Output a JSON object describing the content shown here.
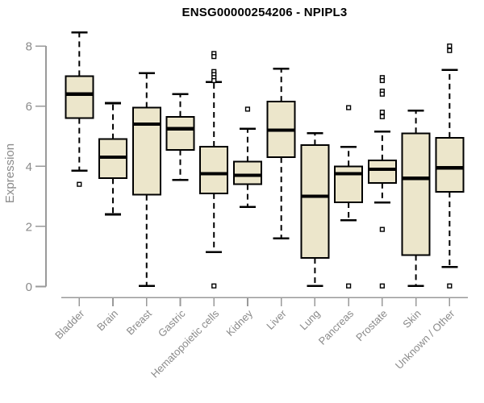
{
  "chart": {
    "title": "ENSG00000254206 - NPIPL3"
  },
  "chart_data": {
    "type": "boxplot",
    "title": "ENSG00000254206 - NPIPL3",
    "xlabel": "",
    "ylabel": "Expression",
    "ylim": [
      0,
      8.5
    ],
    "yticks": [
      0,
      2,
      4,
      6,
      8
    ],
    "grid": false,
    "legend": "none",
    "orientation": "vertical",
    "colors": {
      "box_fill": "#ECE6CB",
      "box_stroke": "#000000",
      "median": "#000000",
      "whisker": "#000000",
      "outlier_fill": "#ffffff",
      "axis": "#9a9a9a",
      "tick_label": "#8a8a8a",
      "title": "#000000",
      "background": "#ffffff"
    },
    "categories": [
      "Bladder",
      "Brain",
      "Breast",
      "Gastric",
      "Hematopoietic cells",
      "Kidney",
      "Liver",
      "Lung",
      "Pancreas",
      "Prostate",
      "Skin",
      "Unknown / Other"
    ],
    "series": [
      {
        "category": "Bladder",
        "whisker_low": 3.85,
        "q1": 5.6,
        "median": 6.4,
        "q3": 7.0,
        "whisker_high": 8.45,
        "outliers": [
          3.4
        ]
      },
      {
        "category": "Brain",
        "whisker_low": 2.4,
        "q1": 3.6,
        "median": 4.3,
        "q3": 4.9,
        "whisker_high": 6.1,
        "outliers": []
      },
      {
        "category": "Breast",
        "whisker_low": 0.02,
        "q1": 3.05,
        "median": 5.4,
        "q3": 5.95,
        "whisker_high": 7.1,
        "outliers": []
      },
      {
        "category": "Gastric",
        "whisker_low": 3.55,
        "q1": 4.55,
        "median": 5.25,
        "q3": 5.65,
        "whisker_high": 6.4,
        "outliers": []
      },
      {
        "category": "Hematopoietic cells",
        "whisker_low": 1.15,
        "q1": 3.1,
        "median": 3.75,
        "q3": 4.65,
        "whisker_high": 6.8,
        "outliers": [
          7.75,
          7.65,
          7.15,
          7.05,
          6.95,
          6.85,
          0.02
        ]
      },
      {
        "category": "Kidney",
        "whisker_low": 2.65,
        "q1": 3.4,
        "median": 3.7,
        "q3": 4.15,
        "whisker_high": 5.25,
        "outliers": [
          5.9
        ]
      },
      {
        "category": "Liver",
        "whisker_low": 1.6,
        "q1": 4.3,
        "median": 5.2,
        "q3": 6.15,
        "whisker_high": 7.25,
        "outliers": []
      },
      {
        "category": "Lung",
        "whisker_low": 0.02,
        "q1": 0.95,
        "median": 3.0,
        "q3": 4.7,
        "whisker_high": 5.1,
        "outliers": []
      },
      {
        "category": "Pancreas",
        "whisker_low": 2.2,
        "q1": 2.8,
        "median": 3.75,
        "q3": 4.0,
        "whisker_high": 4.65,
        "outliers": [
          5.95,
          0.02
        ]
      },
      {
        "category": "Prostate",
        "whisker_low": 2.8,
        "q1": 3.45,
        "median": 3.9,
        "q3": 4.2,
        "whisker_high": 5.15,
        "outliers": [
          6.95,
          6.85,
          6.5,
          6.4,
          5.8,
          5.65,
          1.9,
          0.02
        ]
      },
      {
        "category": "Skin",
        "whisker_low": 0.02,
        "q1": 1.05,
        "median": 3.6,
        "q3": 5.1,
        "whisker_high": 5.85,
        "outliers": []
      },
      {
        "category": "Unknown / Other",
        "whisker_low": 0.65,
        "q1": 3.15,
        "median": 3.95,
        "q3": 4.95,
        "whisker_high": 7.2,
        "outliers": [
          8.0,
          7.85,
          0.02
        ]
      }
    ]
  }
}
